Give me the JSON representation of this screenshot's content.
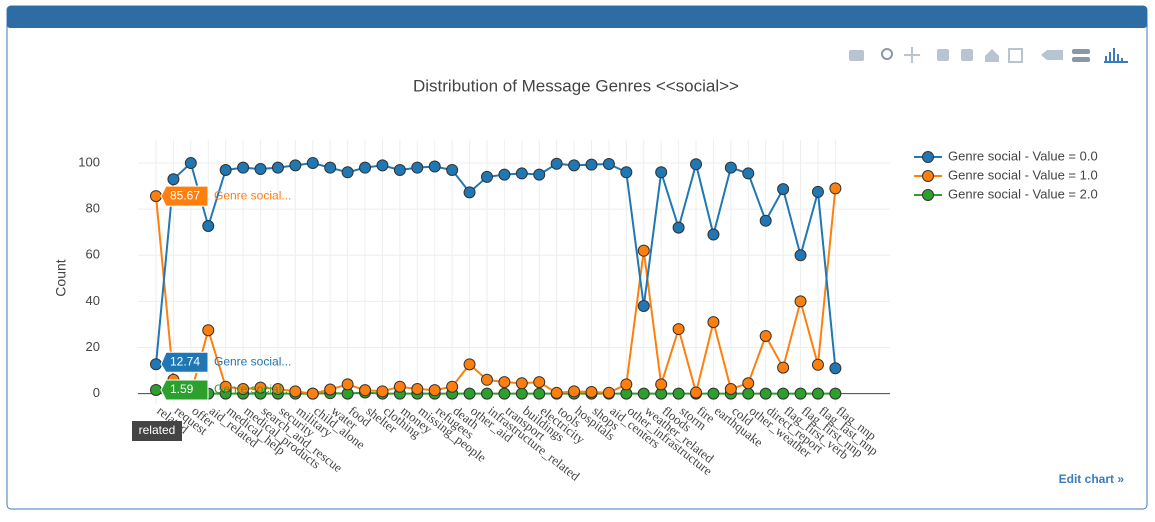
{
  "chart_data": {
    "type": "line",
    "title": "Distribution of Message Genres <<social>>",
    "y_label": "Count",
    "categories": [
      "related",
      "request",
      "offer",
      "aid_related",
      "medical_help",
      "medical_products",
      "search_and_rescue",
      "security",
      "military",
      "child_alone",
      "water",
      "food",
      "shelter",
      "clothing",
      "money",
      "missing_people",
      "refugees",
      "death",
      "other_aid",
      "infrastructure_related",
      "transport",
      "buildings",
      "electricity",
      "tools",
      "hospitals",
      "shops",
      "aid_centers",
      "other_infrastructure",
      "weather_related",
      "floods",
      "storm",
      "fire",
      "earthquake",
      "cold",
      "other_weather",
      "direct_report",
      "flag_first_verb",
      "flag_first_nnp",
      "flag_last_nnp",
      "flag_nnp"
    ],
    "series": [
      {
        "name": "Genre social - Value = 0.0",
        "color": "#1f77b4",
        "values": [
          12.74,
          93,
          100,
          72.7,
          97,
          98,
          97.4,
          98,
          99,
          100,
          98,
          96,
          98,
          99,
          97,
          98,
          98.5,
          97,
          87.3,
          94,
          95,
          95.5,
          95,
          99.7,
          99,
          99.3,
          99.6,
          96,
          38,
          96,
          72,
          99.5,
          69,
          98,
          95.5,
          75,
          88.7,
          60,
          87.5,
          11
        ]
      },
      {
        "name": "Genre social - Value = 1.0",
        "color": "#ff7f0e",
        "values": [
          85.67,
          6,
          0,
          27.5,
          3,
          2,
          2.6,
          2,
          1,
          0,
          1.8,
          4,
          1.5,
          1,
          3,
          2,
          1.5,
          3,
          12.7,
          6,
          5,
          4.5,
          5,
          0.3,
          1,
          0.7,
          0.4,
          4,
          62,
          4,
          28,
          0.5,
          31,
          2,
          4.5,
          25,
          11.3,
          40,
          12.5,
          89
        ]
      },
      {
        "name": "Genre social - Value = 2.0",
        "color": "#2ca02c",
        "values": [
          1.59,
          1,
          0,
          0,
          0,
          0,
          0,
          0,
          0,
          0,
          0.2,
          0,
          0.5,
          0,
          0,
          0,
          0,
          0,
          0,
          0,
          0,
          0,
          0,
          0,
          0,
          0,
          0,
          0,
          0,
          0,
          0,
          0,
          0,
          0,
          0,
          0,
          0,
          0,
          0,
          0
        ]
      }
    ],
    "ylim": [
      -4.5,
      110
    ],
    "yticks": [
      0,
      20,
      40,
      60,
      80,
      100
    ],
    "grid": true,
    "legend": "right",
    "hover": {
      "index": 0,
      "name": "Genre social..."
    },
    "link": "Edit chart »"
  }
}
